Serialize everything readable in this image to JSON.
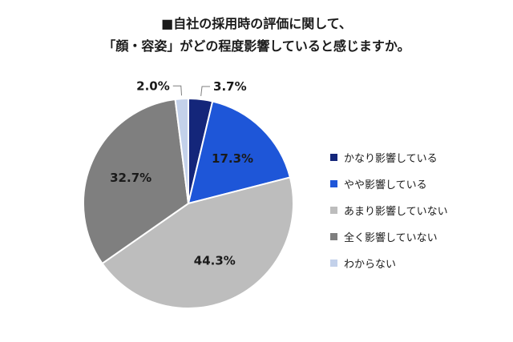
{
  "title": {
    "line1": "■自社の採用時の評価に関して、",
    "line2": "「顔・容姿」がどの程度影響していると感じますか。"
  },
  "chart_data": {
    "type": "pie",
    "title": "■自社の採用時の評価に関して、「顔・容姿」がどの程度影響していると感じますか。",
    "unit": "%",
    "start_angle_deg": 0,
    "direction": "clockwise",
    "legend_position": "right",
    "slices": [
      {
        "name": "かなり影響している",
        "value": 3.7,
        "label": "3.7%",
        "color": "#14267a"
      },
      {
        "name": "やや影響している",
        "value": 17.3,
        "label": "17.3%",
        "color": "#1e56d8"
      },
      {
        "name": "あまり影響していない",
        "value": 44.3,
        "label": "44.3%",
        "color": "#bdbdbd"
      },
      {
        "name": "全く影響していない",
        "value": 32.7,
        "label": "32.7%",
        "color": "#7f7f7f"
      },
      {
        "name": "わからない",
        "value": 2.0,
        "label": "2.0%",
        "color": "#c3d1ea"
      }
    ]
  }
}
